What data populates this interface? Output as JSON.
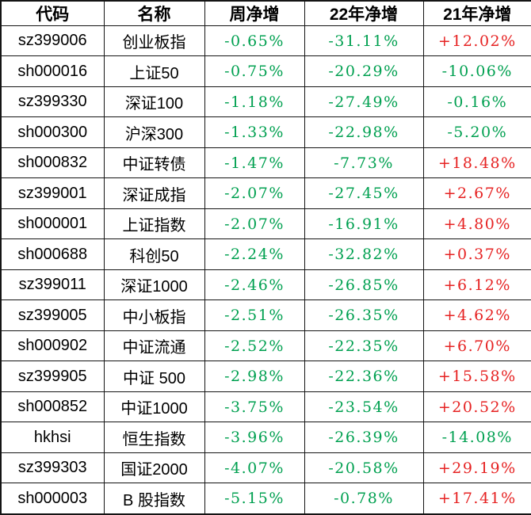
{
  "table": {
    "columns": [
      {
        "key": "code",
        "label": "代码"
      },
      {
        "key": "name",
        "label": "名称"
      },
      {
        "key": "week",
        "label": "周净增"
      },
      {
        "key": "y22",
        "label": "22年净增"
      },
      {
        "key": "y21",
        "label": "21年净增"
      }
    ],
    "colors": {
      "up": "#e62222",
      "down": "#00a050",
      "text": "#000000",
      "grid": "#141414",
      "background": "#ffffff"
    },
    "rows": [
      {
        "code": "sz399006",
        "name": "创业板指",
        "week": "-0.65%",
        "week_dir": "down",
        "y22": "-31.11%",
        "y22_dir": "down",
        "y21": "+12.02%",
        "y21_dir": "up"
      },
      {
        "code": "sh000016",
        "name": "上证50",
        "week": "-0.75%",
        "week_dir": "down",
        "y22": "-20.29%",
        "y22_dir": "down",
        "y21": "-10.06%",
        "y21_dir": "down"
      },
      {
        "code": "sz399330",
        "name": "深证100",
        "week": "-1.18%",
        "week_dir": "down",
        "y22": "-27.49%",
        "y22_dir": "down",
        "y21": "-0.16%",
        "y21_dir": "down"
      },
      {
        "code": "sh000300",
        "name": "沪深300",
        "week": "-1.33%",
        "week_dir": "down",
        "y22": "-22.98%",
        "y22_dir": "down",
        "y21": "-5.20%",
        "y21_dir": "down"
      },
      {
        "code": "sh000832",
        "name": "中证转债",
        "week": "-1.47%",
        "week_dir": "down",
        "y22": "-7.73%",
        "y22_dir": "down",
        "y21": "+18.48%",
        "y21_dir": "up"
      },
      {
        "code": "sz399001",
        "name": "深证成指",
        "week": "-2.07%",
        "week_dir": "down",
        "y22": "-27.45%",
        "y22_dir": "down",
        "y21": "+2.67%",
        "y21_dir": "up"
      },
      {
        "code": "sh000001",
        "name": "上证指数",
        "week": "-2.07%",
        "week_dir": "down",
        "y22": "-16.91%",
        "y22_dir": "down",
        "y21": "+4.80%",
        "y21_dir": "up"
      },
      {
        "code": "sh000688",
        "name": "科创50",
        "week": "-2.24%",
        "week_dir": "down",
        "y22": "-32.82%",
        "y22_dir": "down",
        "y21": "+0.37%",
        "y21_dir": "up"
      },
      {
        "code": "sz399011",
        "name": "深证1000",
        "week": "-2.46%",
        "week_dir": "down",
        "y22": "-26.85%",
        "y22_dir": "down",
        "y21": "+6.12%",
        "y21_dir": "up"
      },
      {
        "code": "sz399005",
        "name": "中小板指",
        "week": "-2.51%",
        "week_dir": "down",
        "y22": "-26.35%",
        "y22_dir": "down",
        "y21": "+4.62%",
        "y21_dir": "up"
      },
      {
        "code": "sh000902",
        "name": "中证流通",
        "week": "-2.52%",
        "week_dir": "down",
        "y22": "-22.35%",
        "y22_dir": "down",
        "y21": "+6.70%",
        "y21_dir": "up"
      },
      {
        "code": "sz399905",
        "name": "中证 500",
        "week": "-2.98%",
        "week_dir": "down",
        "y22": "-22.36%",
        "y22_dir": "down",
        "y21": "+15.58%",
        "y21_dir": "up"
      },
      {
        "code": "sh000852",
        "name": "中证1000",
        "week": "-3.75%",
        "week_dir": "down",
        "y22": "-23.54%",
        "y22_dir": "down",
        "y21": "+20.52%",
        "y21_dir": "up"
      },
      {
        "code": "hkhsi",
        "name": "恒生指数",
        "week": "-3.96%",
        "week_dir": "down",
        "y22": "-26.39%",
        "y22_dir": "down",
        "y21": "-14.08%",
        "y21_dir": "down"
      },
      {
        "code": "sz399303",
        "name": "国证2000",
        "week": "-4.07%",
        "week_dir": "down",
        "y22": "-20.58%",
        "y22_dir": "down",
        "y21": "+29.19%",
        "y21_dir": "up"
      },
      {
        "code": "sh000003",
        "name": "B 股指数",
        "week": "-5.15%",
        "week_dir": "down",
        "y22": "-0.78%",
        "y22_dir": "down",
        "y21": "+17.41%",
        "y21_dir": "up"
      }
    ]
  }
}
